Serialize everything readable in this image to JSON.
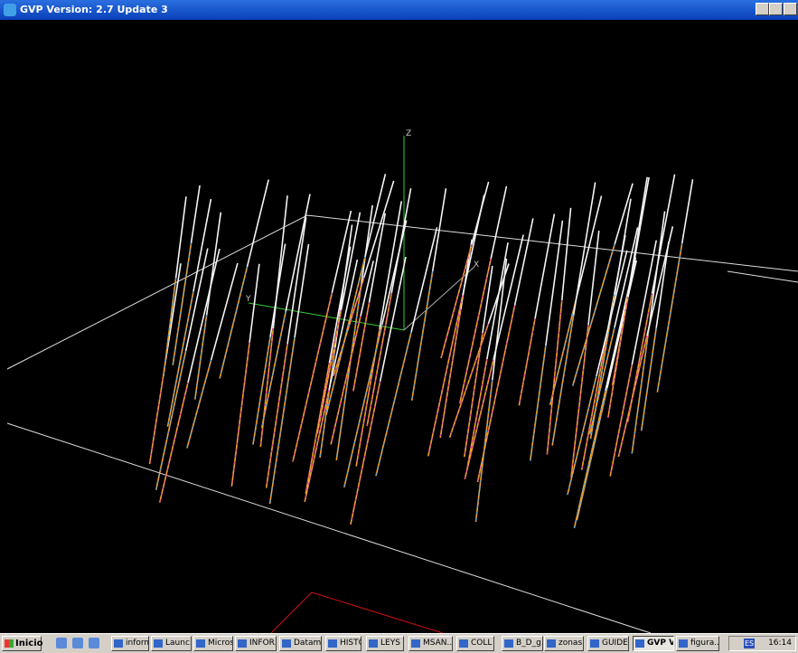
{
  "window": {
    "title": "GVP  Version: 2.7 Update 3"
  },
  "viewport": {
    "axis_labels": {
      "z": "Z",
      "x": "X",
      "y": "Y"
    }
  },
  "taskbar": {
    "start": "Inicio",
    "items": [
      "informe",
      "Launc...",
      "Micros...",
      "INFOR...",
      "Datam...",
      "HISTO",
      "LEYS",
      "MSAN...",
      "COLL",
      "B_D_g...",
      "zonas...",
      "GUIDE",
      "GVP V...",
      "figura..."
    ],
    "tray": {
      "language": "ES",
      "clock": "16:14"
    }
  }
}
